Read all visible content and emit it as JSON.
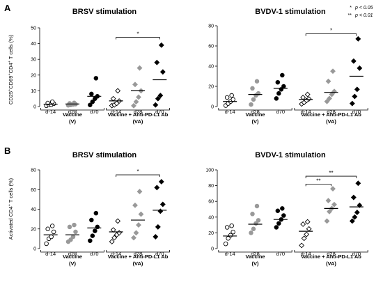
{
  "legend": [
    {
      "stars": "*",
      "text": "p < 0.05"
    },
    {
      "stars": "**",
      "text": "p < 0.01"
    }
  ],
  "chart_data": [
    {
      "type": "scatter",
      "panel": "A",
      "title": "BRSV stimulation",
      "ylabel": "CD25+CD69+CD4+ T cells (%)",
      "ylim": [
        0,
        50
      ],
      "yticks": [
        0,
        10,
        20,
        30,
        40,
        50
      ],
      "categories": [
        "d-14",
        "d28",
        "d70",
        "d-14",
        "d28",
        "d70"
      ],
      "groups": [
        {
          "label": "Vaccine",
          "sublabel": "(V)",
          "from": 0,
          "to": 2
        },
        {
          "label": "Vaccine + Anti-PD-L1 Ab",
          "sublabel": "(VA)",
          "from": 3,
          "to": 5
        }
      ],
      "series": [
        {
          "values": [
            0.5,
            1,
            1.2,
            1.8,
            2.2,
            3
          ],
          "median": 1.5
        },
        {
          "values": [
            0.8,
            1,
            1.3,
            1.5,
            2,
            2.3
          ],
          "median": 1.6
        },
        {
          "values": [
            1,
            3,
            5,
            6.5,
            8,
            18
          ],
          "median": 6.5
        },
        {
          "values": [
            0.6,
            1,
            2,
            3.5,
            5,
            10
          ],
          "median": 3.6
        },
        {
          "values": [
            0.5,
            3,
            6,
            10,
            14,
            24.5
          ],
          "median": 10
        },
        {
          "values": [
            1,
            5,
            7,
            22,
            28,
            39
          ],
          "median": 17
        }
      ],
      "significance": [
        {
          "from": 3,
          "to": 5,
          "label": "*",
          "y": 44
        }
      ]
    },
    {
      "type": "scatter",
      "panel": "A",
      "title": "BVDV-1 stimulation",
      "ylabel": "",
      "ylim": [
        0,
        80
      ],
      "yticks": [
        0,
        20,
        40,
        60,
        80
      ],
      "categories": [
        "d-14",
        "d28",
        "d70",
        "d-14",
        "d28",
        "d70"
      ],
      "groups": [
        {
          "label": "Vaccine",
          "sublabel": "(V)",
          "from": 0,
          "to": 2
        },
        {
          "label": "Vaccine + Anti-PD-L1 Ab",
          "sublabel": "(VA)",
          "from": 3,
          "to": 5
        }
      ],
      "series": [
        {
          "values": [
            1,
            3,
            5,
            7,
            9,
            11
          ],
          "median": 5
        },
        {
          "values": [
            2,
            7,
            11,
            13,
            18,
            25
          ],
          "median": 12
        },
        {
          "values": [
            8,
            13,
            17,
            20,
            24,
            31
          ],
          "median": 18
        },
        {
          "values": [
            2.5,
            4,
            6,
            7.5,
            9,
            12
          ],
          "median": 7
        },
        {
          "values": [
            5,
            8,
            12,
            15,
            25,
            35
          ],
          "median": 14
        },
        {
          "values": [
            3,
            10,
            17,
            38,
            45,
            67
          ],
          "median": 30
        }
      ],
      "significance": [
        {
          "from": 3,
          "to": 5,
          "label": "*",
          "y": 72
        }
      ]
    },
    {
      "type": "scatter",
      "panel": "B",
      "title": "BRSV stimulation",
      "ylabel": "Activated CD4+ T cells (%)",
      "ylim": [
        0,
        80
      ],
      "yticks": [
        0,
        20,
        40,
        60,
        80
      ],
      "categories": [
        "d-14",
        "d28",
        "d70",
        "d-14",
        "d28",
        "d70"
      ],
      "groups": [
        {
          "label": "Vaccine",
          "sublabel": "(V)",
          "from": 0,
          "to": 2
        },
        {
          "label": "Vaccine + Anti-PD-L1 Ab",
          "sublabel": "(VA)",
          "from": 3,
          "to": 5
        }
      ],
      "series": [
        {
          "values": [
            5,
            10,
            12,
            17,
            20,
            23
          ],
          "median": 14
        },
        {
          "values": [
            7,
            9,
            12,
            17,
            22,
            24
          ],
          "median": 14
        },
        {
          "values": [
            8,
            13,
            18,
            22,
            29,
            36
          ],
          "median": 21
        },
        {
          "values": [
            7,
            11,
            14,
            16,
            19,
            28
          ],
          "median": 17
        },
        {
          "values": [
            11,
            16,
            24,
            35,
            44,
            58
          ],
          "median": 29
        },
        {
          "values": [
            12,
            22,
            38,
            45,
            62,
            68
          ],
          "median": 39
        }
      ],
      "significance": [
        {
          "from": 3,
          "to": 5,
          "label": "*",
          "y": 75
        }
      ]
    },
    {
      "type": "scatter",
      "panel": "B",
      "title": "BVDV-1 stimulation",
      "ylabel": "",
      "ylim": [
        0,
        100
      ],
      "yticks": [
        0,
        20,
        40,
        60,
        80,
        100
      ],
      "categories": [
        "d-14",
        "d28",
        "d70",
        "d-14",
        "d28",
        "d70"
      ],
      "groups": [
        {
          "label": "Vaccine",
          "sublabel": "(V)",
          "from": 0,
          "to": 2
        },
        {
          "label": "Vaccine + Anti-PD-L1 Ab",
          "sublabel": "(VA)",
          "from": 3,
          "to": 5
        }
      ],
      "series": [
        {
          "values": [
            6,
            13,
            17,
            21,
            27,
            29
          ],
          "median": 16
        },
        {
          "values": [
            20,
            25,
            32,
            36,
            44,
            54
          ],
          "median": 31
        },
        {
          "values": [
            27,
            32,
            37,
            42,
            48,
            51
          ],
          "median": 37
        },
        {
          "values": [
            4,
            13,
            18,
            25,
            31,
            34
          ],
          "median": 22
        },
        {
          "values": [
            35,
            47,
            51,
            56,
            61,
            76
          ],
          "median": 51
        },
        {
          "values": [
            35,
            40,
            46,
            55,
            65,
            83
          ],
          "median": 53
        }
      ],
      "significance": [
        {
          "from": 3,
          "to": 4,
          "label": "**",
          "y": 82
        },
        {
          "from": 3,
          "to": 5,
          "label": "**",
          "y": 92
        }
      ]
    }
  ],
  "colors": {
    "d-14": "#000000",
    "d28": "#999999",
    "d70": "#000000",
    "axis": "#000000"
  }
}
